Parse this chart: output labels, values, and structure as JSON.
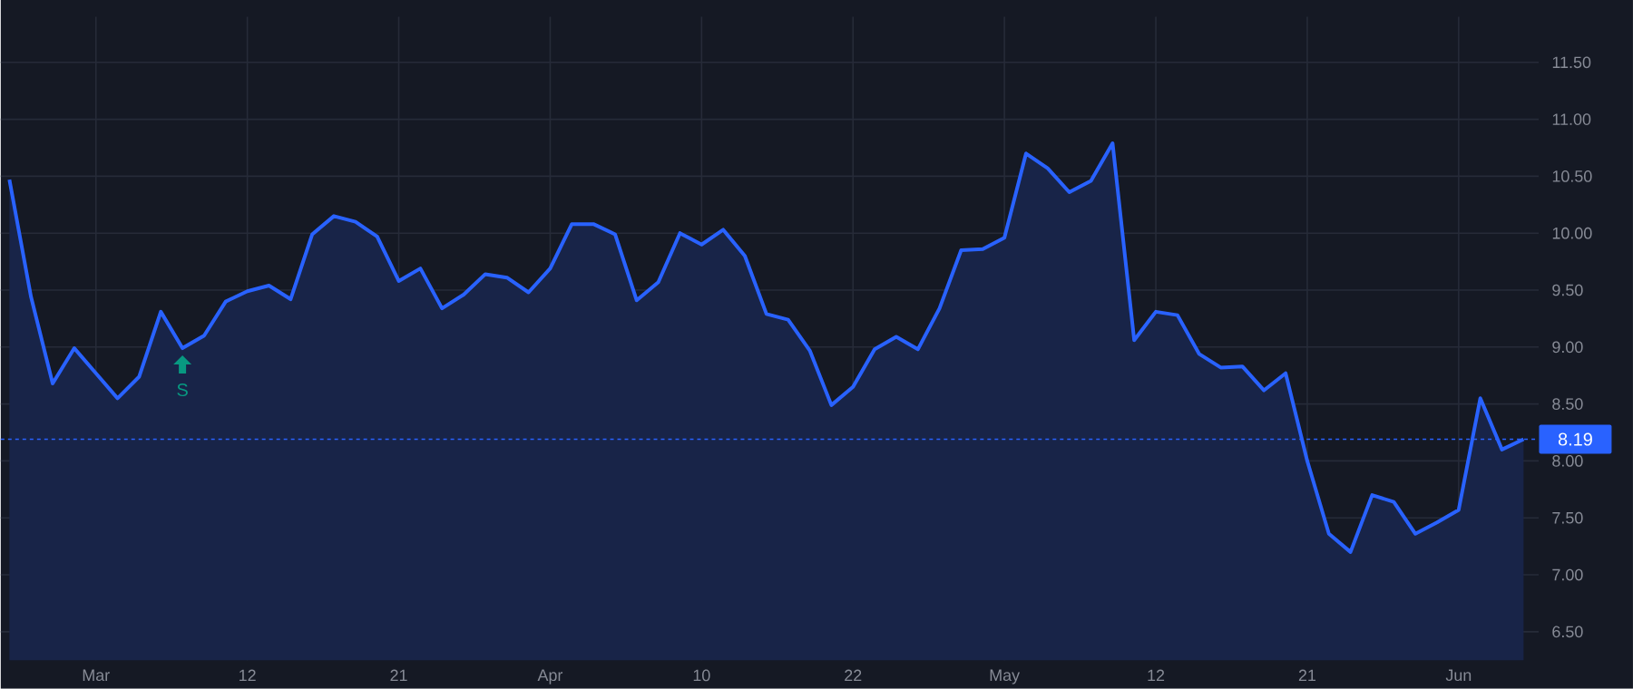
{
  "chart_data": {
    "type": "area",
    "categories": [
      null,
      null,
      null,
      null,
      "Mar",
      null,
      null,
      null,
      null,
      null,
      null,
      "12",
      null,
      null,
      null,
      null,
      null,
      null,
      "21",
      null,
      null,
      null,
      null,
      null,
      null,
      "Apr",
      null,
      null,
      null,
      null,
      null,
      null,
      "10",
      null,
      null,
      null,
      null,
      null,
      null,
      "22",
      null,
      null,
      null,
      null,
      null,
      null,
      "May",
      null,
      null,
      null,
      null,
      null,
      null,
      "12",
      null,
      null,
      null,
      null,
      null,
      null,
      "21",
      null,
      null,
      null,
      null,
      null,
      null,
      "Jun",
      null,
      null,
      null
    ],
    "series": [
      {
        "color": "#2962ff",
        "values": [
          10.47,
          9.44,
          8.68,
          8.99,
          8.77,
          8.55,
          8.74,
          9.31,
          8.99,
          9.1,
          9.4,
          9.49,
          9.54,
          9.42,
          9.99,
          10.15,
          10.1,
          9.97,
          9.58,
          9.69,
          9.34,
          9.46,
          9.64,
          9.61,
          9.48,
          9.69,
          10.08,
          10.08,
          9.99,
          9.41,
          9.57,
          10.0,
          9.9,
          10.03,
          9.8,
          9.29,
          9.24,
          8.97,
          8.49,
          8.65,
          8.98,
          9.09,
          8.98,
          9.34,
          9.85,
          9.86,
          9.96,
          10.7,
          10.57,
          10.36,
          10.46,
          10.79,
          9.06,
          9.31,
          9.28,
          8.94,
          8.82,
          8.83,
          8.62,
          8.77,
          8.0,
          7.36,
          7.2,
          7.7,
          7.64,
          7.36,
          7.46,
          7.57,
          8.55,
          8.1,
          8.19
        ]
      }
    ],
    "ylim": [
      6.25,
      11.9
    ],
    "yticks": [
      {
        "value": 6.5,
        "label": "6.50"
      },
      {
        "value": 7,
        "label": "7.00"
      },
      {
        "value": 7.5,
        "label": "7.50"
      },
      {
        "value": 8,
        "label": "8.00"
      },
      {
        "value": 8.5,
        "label": "8.50"
      },
      {
        "value": 9,
        "label": "9.00"
      },
      {
        "value": 9.5,
        "label": "9.50"
      },
      {
        "value": 10,
        "label": "10.00"
      },
      {
        "value": 10.5,
        "label": "10.50"
      },
      {
        "value": 11,
        "label": "11.00"
      },
      {
        "value": 11.5,
        "label": "11.50"
      }
    ],
    "ref_lines": [
      {
        "axis": "y",
        "value": 8.19,
        "label": "8.19",
        "color": "#2962ff",
        "line_style": "dotted"
      }
    ],
    "annotations": [
      "S"
    ],
    "grid": true,
    "marker": "none",
    "line_style": "solid"
  }
}
